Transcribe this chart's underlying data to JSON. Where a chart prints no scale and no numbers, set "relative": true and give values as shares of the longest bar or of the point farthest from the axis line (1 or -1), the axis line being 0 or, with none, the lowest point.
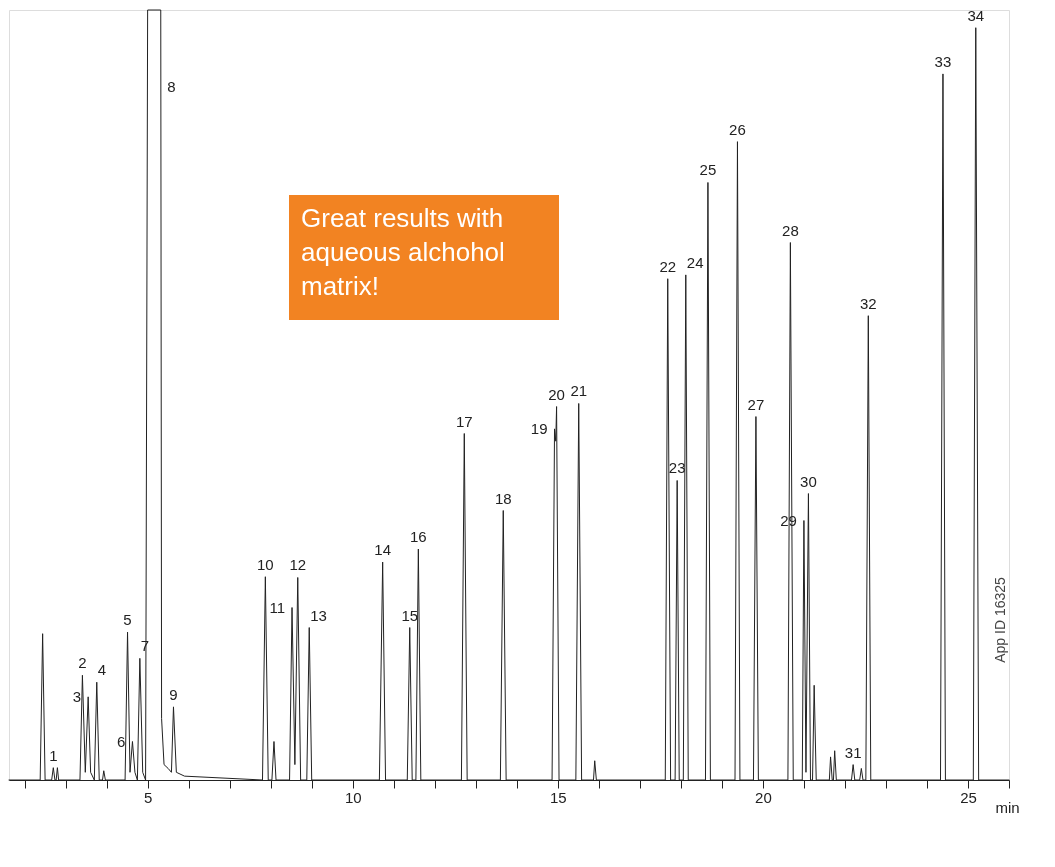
{
  "chart_data": {
    "type": "line",
    "relative": true,
    "color": "#222222",
    "xlabel": "min",
    "tick_labels": "x",
    "xlim": [
      1.62,
      26.0
    ],
    "xticks": [
      {
        "value": 2,
        "label": null
      },
      {
        "value": 3,
        "label": null
      },
      {
        "value": 4,
        "label": null
      },
      5,
      {
        "value": 6,
        "label": null
      },
      {
        "value": 7,
        "label": null
      },
      {
        "value": 8,
        "label": null
      },
      {
        "value": 9,
        "label": null
      },
      10,
      {
        "value": 11,
        "label": null
      },
      {
        "value": 12,
        "label": null
      },
      {
        "value": 13,
        "label": null
      },
      {
        "value": 14,
        "label": null
      },
      15,
      {
        "value": 16,
        "label": null
      },
      {
        "value": 17,
        "label": null
      },
      {
        "value": 18,
        "label": null
      },
      {
        "value": 19,
        "label": null
      },
      20,
      {
        "value": 21,
        "label": null
      },
      {
        "value": 22,
        "label": null
      },
      {
        "value": 23,
        "label": null
      },
      {
        "value": 24,
        "label": null
      },
      25,
      {
        "value": 26,
        "label": null
      }
    ],
    "x": [
      1.62,
      2.38,
      2.44,
      2.5,
      2.66,
      2.7,
      2.74,
      2.77,
      2.8,
      2.83,
      3.35,
      3.41,
      3.48,
      3.55,
      3.61,
      3.7,
      3.76,
      3.82,
      3.9,
      3.93,
      3.97,
      4.45,
      4.51,
      4.57,
      4.63,
      4.69,
      4.75,
      4.81,
      4.88,
      4.95,
      5.0,
      5.32,
      5.34,
      5.4,
      5.5,
      5.58,
      5.63,
      5.7,
      5.9,
      7.8,
      7.87,
      7.94,
      8.03,
      8.08,
      8.13,
      8.46,
      8.52,
      8.59,
      8.66,
      8.73,
      8.88,
      8.94,
      9.0,
      10.65,
      10.73,
      10.8,
      11.33,
      11.39,
      11.45,
      11.54,
      11.6,
      11.66,
      12.65,
      12.72,
      12.79,
      13.6,
      13.67,
      13.74,
      14.86,
      14.92,
      14.95,
      14.97,
      15.03,
      15.44,
      15.51,
      15.58,
      15.87,
      15.9,
      15.94,
      17.62,
      17.68,
      17.75,
      17.86,
      17.91,
      17.96,
      18.06,
      18.12,
      18.18,
      18.6,
      18.66,
      18.72,
      19.32,
      19.38,
      19.44,
      19.77,
      19.83,
      19.89,
      20.61,
      20.67,
      20.74,
      20.96,
      21.0,
      21.05,
      21.11,
      21.16,
      21.21,
      21.25,
      21.3,
      21.62,
      21.65,
      21.69,
      21.72,
      21.75,
      21.79,
      22.16,
      22.2,
      22.24,
      22.36,
      22.4,
      22.44,
      22.51,
      22.57,
      22.63,
      24.33,
      24.39,
      24.45,
      25.13,
      25.19,
      25.26,
      26.0
    ],
    "values": [
      0,
      0,
      0.19,
      0,
      0,
      0.016,
      0,
      0,
      0.016,
      0,
      0,
      0.136,
      0.01,
      0.108,
      0.01,
      0,
      0.127,
      0,
      0,
      0.012,
      0,
      0,
      0.192,
      0.01,
      0.05,
      0.01,
      0,
      0.158,
      0.01,
      0,
      1,
      1,
      0.08,
      0.02,
      0.015,
      0.01,
      0.095,
      0.01,
      0.005,
      0,
      0.264,
      0,
      0,
      0.05,
      0,
      0,
      0.224,
      0.02,
      0.263,
      0,
      0,
      0.198,
      0,
      0,
      0.283,
      0,
      0,
      0.198,
      0,
      0,
      0.3,
      0,
      0,
      0.45,
      0,
      0,
      0.35,
      0,
      0,
      0.456,
      0.44,
      0.485,
      0,
      0,
      0.489,
      0,
      0,
      0.025,
      0,
      0,
      0.651,
      0,
      0,
      0.389,
      0,
      0,
      0.656,
      0,
      0,
      0.776,
      0,
      0,
      0.829,
      0,
      0,
      0.472,
      0,
      0,
      0.698,
      0,
      0,
      0.337,
      0.01,
      0.372,
      0,
      0,
      0.123,
      0,
      0,
      0.03,
      0,
      0,
      0.038,
      0,
      0,
      0.02,
      0,
      0,
      0.015,
      0,
      0,
      0.603,
      0,
      0,
      0.917,
      0,
      0,
      0.977,
      0,
      0
    ],
    "annotations": [
      "Great results with aqueous alchohol matrix!",
      "App ID 16325",
      {
        "text": "1",
        "x": 2.7,
        "y": 0.016
      },
      {
        "text": "2",
        "x": 3.41,
        "y": 0.136
      },
      {
        "text": "3",
        "x": 3.55,
        "y": 0.108
      },
      {
        "text": "4",
        "x": 3.76,
        "y": 0.127
      },
      {
        "text": "5",
        "x": 4.51,
        "y": 0.192
      },
      {
        "text": "6",
        "x": 4.63,
        "y": 0.05
      },
      {
        "text": "7",
        "x": 4.81,
        "y": 0.158
      },
      {
        "text": "8",
        "x": 5.33,
        "y": 0.9
      },
      {
        "text": "9",
        "x": 5.63,
        "y": 0.095
      },
      {
        "text": "10",
        "x": 7.87,
        "y": 0.264
      },
      {
        "text": "11",
        "x": 8.52,
        "y": 0.224
      },
      {
        "text": "12",
        "x": 8.66,
        "y": 0.263
      },
      {
        "text": "13",
        "x": 8.94,
        "y": 0.198
      },
      {
        "text": "14",
        "x": 10.73,
        "y": 0.283
      },
      {
        "text": "15",
        "x": 11.39,
        "y": 0.198
      },
      {
        "text": "16",
        "x": 11.6,
        "y": 0.3
      },
      {
        "text": "17",
        "x": 12.72,
        "y": 0.45
      },
      {
        "text": "18",
        "x": 13.67,
        "y": 0.35
      },
      {
        "text": "19",
        "x": 14.92,
        "y": 0.456
      },
      {
        "text": "20",
        "x": 14.97,
        "y": 0.485
      },
      {
        "text": "21",
        "x": 15.51,
        "y": 0.489
      },
      {
        "text": "22",
        "x": 17.68,
        "y": 0.651
      },
      {
        "text": "23",
        "x": 17.91,
        "y": 0.389
      },
      {
        "text": "24",
        "x": 18.12,
        "y": 0.656
      },
      {
        "text": "25",
        "x": 18.66,
        "y": 0.776
      },
      {
        "text": "26",
        "x": 19.38,
        "y": 0.829
      },
      {
        "text": "27",
        "x": 19.83,
        "y": 0.472
      },
      {
        "text": "28",
        "x": 20.67,
        "y": 0.698
      },
      {
        "text": "29",
        "x": 21.0,
        "y": 0.337
      },
      {
        "text": "30",
        "x": 21.11,
        "y": 0.372
      },
      {
        "text": "31",
        "x": 22.2,
        "y": 0.02
      },
      {
        "text": "32",
        "x": 22.57,
        "y": 0.603
      },
      {
        "text": "33",
        "x": 24.39,
        "y": 0.917
      },
      {
        "text": "34",
        "x": 25.19,
        "y": 0.977
      }
    ]
  }
}
